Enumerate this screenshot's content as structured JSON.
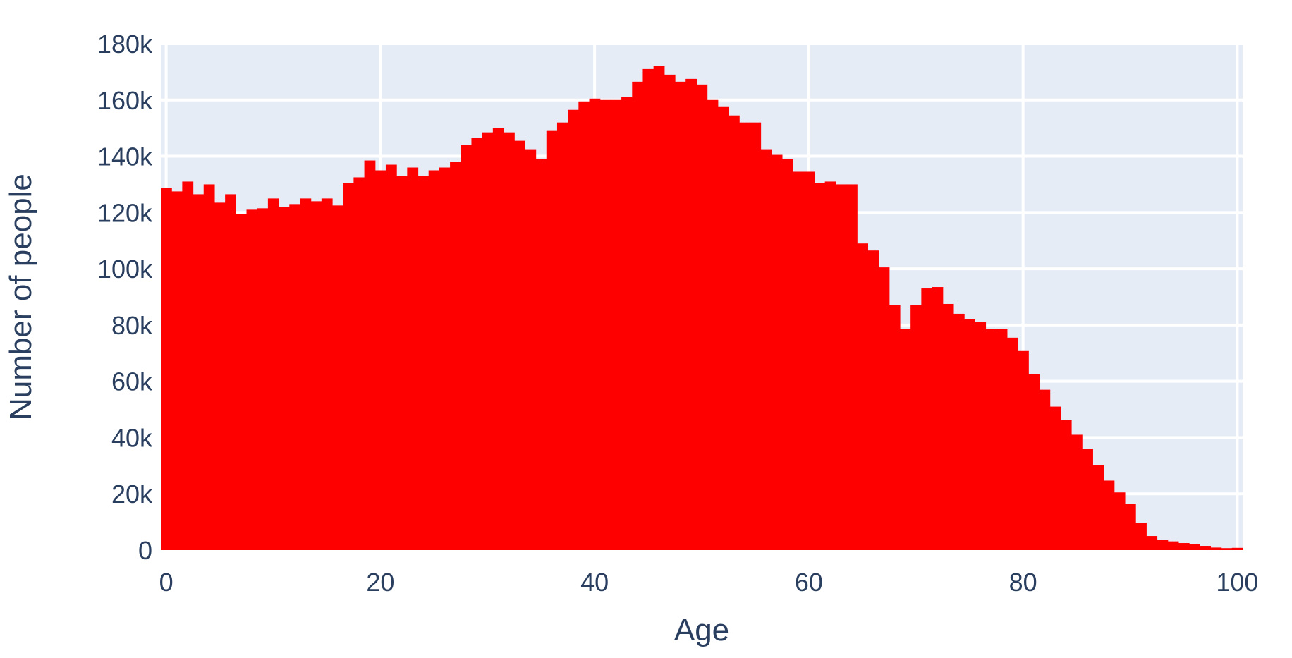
{
  "chart_data": {
    "type": "bar",
    "xlabel": "Age",
    "ylabel": "Number of people",
    "xlim": [
      -0.5,
      100.5
    ],
    "ylim": [
      0,
      180000
    ],
    "x_ticks": [
      0,
      20,
      40,
      60,
      80,
      100
    ],
    "x_tick_labels": [
      "0",
      "20",
      "40",
      "60",
      "80",
      "100"
    ],
    "y_ticks": [
      0,
      20000,
      40000,
      60000,
      80000,
      100000,
      120000,
      140000,
      160000,
      180000
    ],
    "y_tick_labels": [
      "0",
      "20k",
      "40k",
      "60k",
      "80k",
      "100k",
      "120k",
      "140k",
      "160k",
      "180k"
    ],
    "grid": true,
    "legend": false,
    "colors": {
      "bars": "#ff0000",
      "plot_background": "#e5ecf6",
      "grid": "#ffffff",
      "text": "#2a3f5f"
    },
    "x": [
      0,
      1,
      2,
      3,
      4,
      5,
      6,
      7,
      8,
      9,
      10,
      11,
      12,
      13,
      14,
      15,
      16,
      17,
      18,
      19,
      20,
      21,
      22,
      23,
      24,
      25,
      26,
      27,
      28,
      29,
      30,
      31,
      32,
      33,
      34,
      35,
      36,
      37,
      38,
      39,
      40,
      41,
      42,
      43,
      44,
      45,
      46,
      47,
      48,
      49,
      50,
      51,
      52,
      53,
      54,
      55,
      56,
      57,
      58,
      59,
      60,
      61,
      62,
      63,
      64,
      65,
      66,
      67,
      68,
      69,
      70,
      71,
      72,
      73,
      74,
      75,
      76,
      77,
      78,
      79,
      80,
      81,
      82,
      83,
      84,
      85,
      86,
      87,
      88,
      89,
      90,
      91,
      92,
      93,
      94,
      95,
      96,
      97,
      98,
      99,
      100
    ],
    "values": [
      128800,
      127500,
      131000,
      126500,
      130000,
      123500,
      126500,
      119500,
      121000,
      121500,
      125000,
      122000,
      123000,
      125000,
      124000,
      125000,
      122500,
      130500,
      132500,
      138500,
      135000,
      137000,
      133000,
      136000,
      133000,
      135000,
      136000,
      138000,
      144000,
      146500,
      148500,
      150000,
      148500,
      145500,
      142500,
      139000,
      149000,
      152000,
      156500,
      159500,
      160500,
      160000,
      160000,
      161000,
      166500,
      171000,
      172000,
      169000,
      166500,
      167500,
      165500,
      160000,
      157500,
      154500,
      152000,
      152000,
      142500,
      140500,
      139000,
      134500,
      134500,
      130500,
      131000,
      130000,
      130000,
      109000,
      106500,
      100500,
      87000,
      78500,
      87000,
      93000,
      93500,
      87500,
      84000,
      82000,
      81000,
      78500,
      78700,
      75500,
      71000,
      62500,
      57000,
      51000,
      46200,
      41000,
      36000,
      30200,
      24700,
      20500,
      16500,
      9700,
      5000,
      3700,
      3100,
      2500,
      2100,
      1500,
      900,
      700,
      800
    ]
  }
}
